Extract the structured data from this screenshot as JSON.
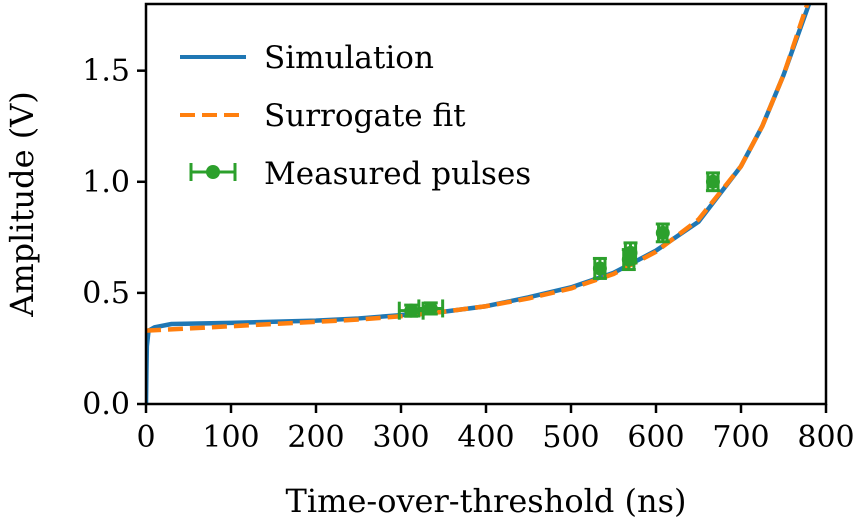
{
  "chart_data": {
    "type": "line",
    "xlabel": "Time-over-threshold (ns)",
    "ylabel": "Amplitude (V)",
    "xlim": [
      0,
      800
    ],
    "ylim": [
      0.0,
      1.8
    ],
    "xticks": [
      0,
      100,
      200,
      300,
      400,
      500,
      600,
      700,
      800
    ],
    "yticks": [
      0.0,
      0.5,
      1.0,
      1.5
    ],
    "xtick_labels": [
      "0",
      "100",
      "200",
      "300",
      "400",
      "500",
      "600",
      "700",
      "800"
    ],
    "ytick_labels": [
      "0.0",
      "0.5",
      "1.0",
      "1.5"
    ],
    "grid": false,
    "legend_position": "top-left",
    "series": [
      {
        "name": "Simulation",
        "style": "solid",
        "color": "#1f77b4",
        "x": [
          0,
          0.5,
          1,
          3,
          10,
          30,
          100,
          200,
          250,
          300,
          350,
          400,
          450,
          500,
          550,
          600,
          650,
          700,
          725,
          750,
          765,
          780
        ],
        "y": [
          0.0,
          0.15,
          0.26,
          0.33,
          0.345,
          0.36,
          0.365,
          0.375,
          0.385,
          0.4,
          0.415,
          0.44,
          0.48,
          0.525,
          0.59,
          0.69,
          0.82,
          1.07,
          1.25,
          1.48,
          1.64,
          1.8
        ]
      },
      {
        "name": "Surrogate fit",
        "style": "dashed",
        "color": "#ff7f0e",
        "x": [
          0,
          50,
          100,
          150,
          200,
          250,
          300,
          350,
          400,
          450,
          500,
          550,
          600,
          650,
          700,
          725,
          750,
          765,
          778
        ],
        "y": [
          0.33,
          0.34,
          0.35,
          0.36,
          0.37,
          0.38,
          0.395,
          0.415,
          0.44,
          0.475,
          0.52,
          0.585,
          0.685,
          0.83,
          1.07,
          1.25,
          1.48,
          1.65,
          1.8
        ]
      },
      {
        "name": "Measured pulses",
        "style": "errorbar",
        "color": "#2ca02c",
        "x": [
          312,
          335,
          534,
          568,
          570,
          608,
          667
        ],
        "y": [
          0.42,
          0.43,
          0.61,
          0.65,
          0.68,
          0.77,
          1.0
        ],
        "xerr": [
          14,
          14,
          6,
          6,
          6,
          5,
          6
        ],
        "yerr": [
          0.025,
          0.025,
          0.045,
          0.045,
          0.045,
          0.04,
          0.04
        ]
      }
    ]
  }
}
